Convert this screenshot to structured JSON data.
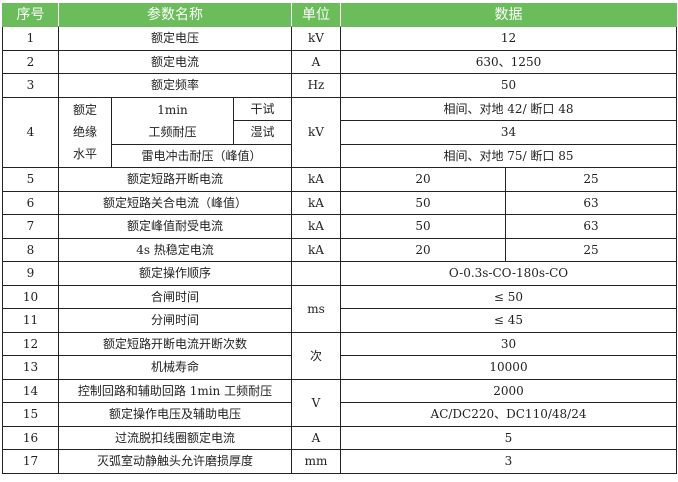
{
  "header": {
    "no": "序号",
    "name": "参数名称",
    "unit": "单位",
    "data": "数据"
  },
  "header_color": "#6bbd5b",
  "rows": [
    {
      "no": "1",
      "name": "额定电压",
      "unit": "kV",
      "value": "12"
    },
    {
      "no": "2",
      "name": "额定电流",
      "unit": "A",
      "value": "630、1250"
    },
    {
      "no": "3",
      "name": "额定频率",
      "unit": "Hz",
      "value": "50"
    },
    {
      "no": "4",
      "group": [
        "额定",
        "绝缘",
        "水平"
      ],
      "pf_label": [
        "1min",
        "工频耐压"
      ],
      "dry": "干试",
      "wet": "湿试",
      "dry_value": "相间、对地 42/ 断口 48",
      "wet_value": "34",
      "lightning": "雷电冲击耐压（峰值）",
      "lightning_value": "相间、对地 75/ 断口 85",
      "unit": "kV"
    },
    {
      "no": "5",
      "name": "额定短路开断电流",
      "unit": "kA",
      "v1": "20",
      "v2": "25"
    },
    {
      "no": "6",
      "name": "额定短路关合电流（峰值）",
      "unit": "kA",
      "v1": "50",
      "v2": "63"
    },
    {
      "no": "7",
      "name": "额定峰值耐受电流",
      "unit": "kA",
      "v1": "50",
      "v2": "63"
    },
    {
      "no": "8",
      "name": "4s 热稳定电流",
      "unit": "kA",
      "v1": "20",
      "v2": "25"
    },
    {
      "no": "9",
      "name": "额定操作顺序",
      "unit": "",
      "value": "O-0.3s-CO-180s-CO"
    },
    {
      "no": "10",
      "name": "合闸时间",
      "unit": "ms",
      "value": "≤ 50"
    },
    {
      "no": "11",
      "name": "分闸时间",
      "value": "≤ 45"
    },
    {
      "no": "12",
      "name": "额定短路开断电流开断次数",
      "unit": "次",
      "value": "30"
    },
    {
      "no": "13",
      "name": "机械寿命",
      "value": "10000"
    },
    {
      "no": "14",
      "name": "控制回路和辅助回路 1min 工频耐压",
      "unit": "V",
      "value": "2000"
    },
    {
      "no": "15",
      "name": "额定操作电压及辅助电压",
      "value": "AC/DC220、DC110/48/24"
    },
    {
      "no": "16",
      "name": "过流脱扣线圈额定电流",
      "unit": "A",
      "value": "5"
    },
    {
      "no": "17",
      "name": "灭弧室动静触头允许磨损厚度",
      "unit": "mm",
      "value": "3"
    }
  ]
}
